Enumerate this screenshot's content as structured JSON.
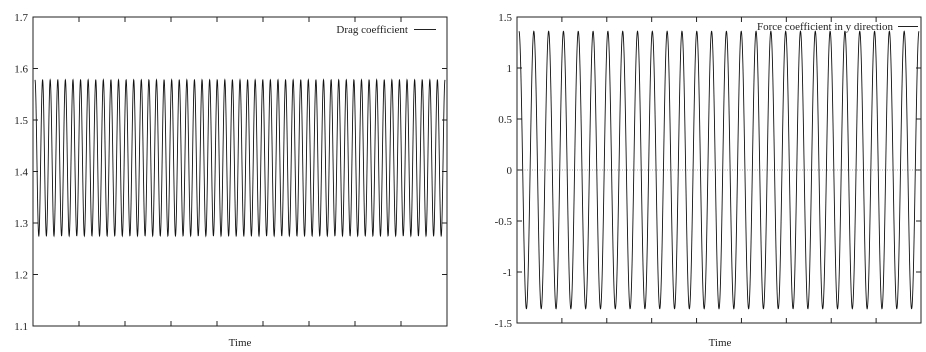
{
  "chart_data": [
    {
      "type": "line",
      "xlabel": "Time",
      "ylabel": "",
      "ylim": [
        1.1,
        1.7
      ],
      "yticks": [
        "1.1",
        "1.2",
        "1.3",
        "1.4",
        "1.5",
        "1.6",
        "1.7"
      ],
      "x_ticks_count": 9,
      "series": [
        {
          "name": "Drag coefficient",
          "oscillation": {
            "min": 1.275,
            "max": 1.578,
            "cycles": 54
          }
        }
      ],
      "legend_position": "top-right",
      "grid": false
    },
    {
      "type": "line",
      "xlabel": "Time",
      "ylabel": "",
      "ylim": [
        -1.5,
        1.5
      ],
      "yticks": [
        "-1.5",
        "-1",
        "-0.5",
        "0",
        "0.5",
        "1",
        "1.5"
      ],
      "x_ticks_count": 9,
      "zero_line": true,
      "series": [
        {
          "name": "Force coefficient in y direction",
          "oscillation": {
            "min": -1.36,
            "max": 1.36,
            "cycles": 27
          }
        }
      ],
      "legend_position": "top-right",
      "grid": false
    }
  ]
}
